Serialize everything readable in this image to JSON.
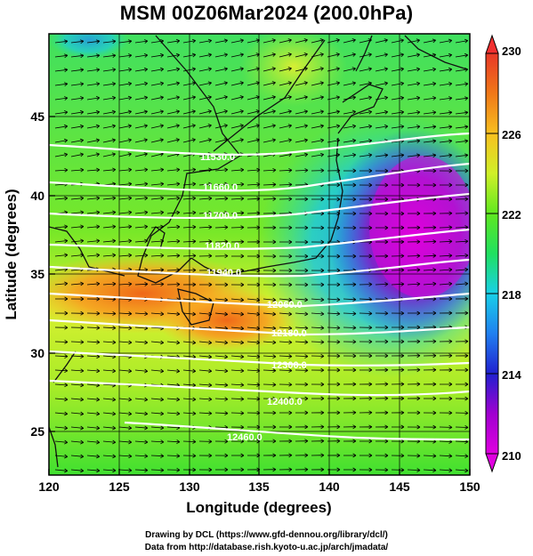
{
  "title": "MSM 00Z06Mar2024 (200.0hPa)",
  "x_axis": {
    "label": "Longitude (degrees)",
    "ticks": [
      "120",
      "125",
      "130",
      "135",
      "140",
      "145",
      "150"
    ],
    "range": [
      120,
      150
    ]
  },
  "y_axis": {
    "label": "Latitude  (degrees)",
    "ticks": [
      "25",
      "30",
      "35",
      "40",
      "45"
    ],
    "range": [
      22.4,
      47.6
    ]
  },
  "colorbar": {
    "ticks": [
      "210",
      "214",
      "218",
      "222",
      "226",
      "230"
    ],
    "range": [
      210,
      230
    ],
    "colors": [
      "#e000e0",
      "#b000d8",
      "#6a2cc0",
      "#1818d8",
      "#2070f0",
      "#18c8f0",
      "#20e8a8",
      "#28e028",
      "#78e820",
      "#c8f028",
      "#f0e830",
      "#f8b020",
      "#f07818",
      "#e84818",
      "#f03030"
    ]
  },
  "contours": {
    "color": "#ffffff",
    "labels": [
      "11530.0",
      "11660.0",
      "11700.0",
      "11820.0",
      "11940.0",
      "12060.0",
      "12180.0",
      "12300.0",
      "12400.0",
      "12460.0"
    ]
  },
  "credits": {
    "line1": "Drawing by DCL (https://www.gfd-dennou.org/library/dcl/)",
    "line2": "Data from http://database.rish.kyoto-u.ac.jp/arch/jmadata/"
  }
}
